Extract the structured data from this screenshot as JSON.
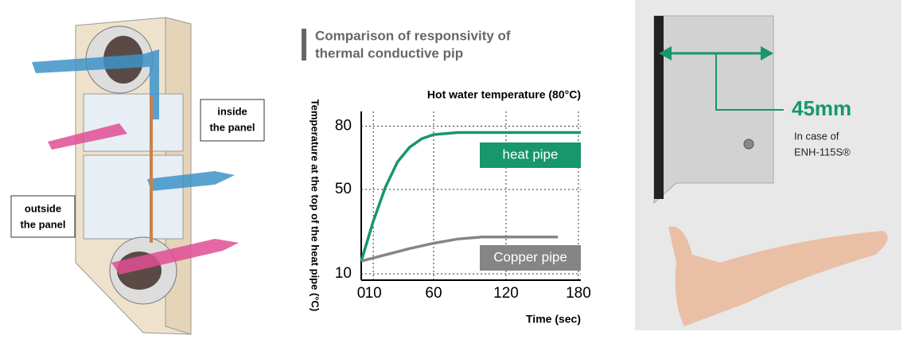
{
  "left_panel": {
    "inside_label": [
      "inside",
      "the panel"
    ],
    "outside_label": [
      "outside",
      "the panel"
    ]
  },
  "chart_data": {
    "type": "line",
    "title": [
      "Comparison of responsivity of",
      "thermal conductive pip"
    ],
    "annotation": "Hot water temperature (80°C)",
    "y_label": "Temperature at the top of the heat pipe (°C)",
    "x_label": "Time (sec)",
    "xlim": [
      0,
      182
    ],
    "xticks": [
      0,
      10,
      60,
      120,
      180
    ],
    "ylim": [
      7,
      87
    ],
    "yticks": [
      10,
      50,
      80
    ],
    "grid": true,
    "series": [
      {
        "name": "heat pipe",
        "color": "#17976b",
        "x": [
          0,
          10,
          20,
          30,
          40,
          50,
          60,
          80,
          100,
          120,
          150,
          182
        ],
        "values": [
          16,
          35,
          51,
          63,
          70,
          74,
          76,
          77,
          77,
          77,
          77,
          77
        ]
      },
      {
        "name": "Copper pipe",
        "color": "#858585",
        "x": [
          0,
          20,
          40,
          60,
          80,
          100,
          120,
          163
        ],
        "values": [
          16,
          19,
          22,
          24.5,
          26.5,
          27.5,
          27.5,
          27.5
        ]
      }
    ]
  },
  "right_panel": {
    "measure": "45mm",
    "note": [
      "In case of",
      "ENH-115S®"
    ]
  }
}
